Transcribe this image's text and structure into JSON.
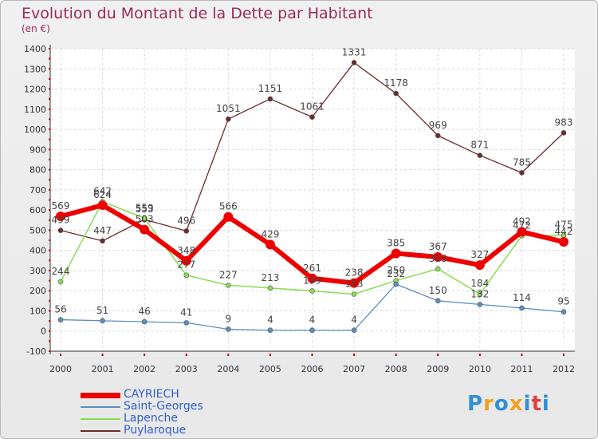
{
  "title": "Evolution du Montant de la Dette par Habitant",
  "subtitle": "(en €)",
  "logo": {
    "letters": [
      "P",
      "r",
      "o",
      "x",
      "i",
      "t",
      "i"
    ],
    "colors": [
      "#2f8fd8",
      "#f0a020",
      "#2f8fd8",
      "#f0a020",
      "#2f8fd8",
      "#e04040",
      "#2f8fd8"
    ]
  },
  "chart_data": {
    "type": "line",
    "x": [
      "2000",
      "2001",
      "2002",
      "2003",
      "2004",
      "2005",
      "2006",
      "2007",
      "2008",
      "2009",
      "2010",
      "2011",
      "2012"
    ],
    "ylim": [
      -100,
      1400
    ],
    "yticks": [
      -100,
      0,
      100,
      200,
      300,
      400,
      500,
      600,
      700,
      800,
      900,
      1000,
      1100,
      1200,
      1300,
      1400
    ],
    "grid": true,
    "legend_position": "bottom-left",
    "series": [
      {
        "name": "Puylaroque",
        "color": "#6e2a2a",
        "width": 1.3,
        "values": [
          499,
          447,
          553,
          496,
          1051,
          1151,
          1061,
          1331,
          1178,
          969,
          871,
          785,
          983
        ],
        "labels": [
          "499",
          "447",
          "553",
          "496",
          "1051",
          "1151",
          "1061",
          "1331",
          "1178",
          "969",
          "871",
          "785",
          "983"
        ]
      },
      {
        "name": "Lapenche",
        "color": "#88dd55",
        "width": 1.5,
        "values": [
          244,
          642,
          559,
          277,
          227,
          213,
          199,
          183,
          250,
          308,
          184,
          472,
          475
        ],
        "labels": [
          "244",
          "642",
          "559",
          "277",
          "227",
          "213",
          "199",
          "183",
          "250",
          "308",
          "184",
          "472",
          "475"
        ]
      },
      {
        "name": "Saint-Georges",
        "color": "#5b8fc0",
        "width": 1.3,
        "values": [
          56,
          51,
          46,
          41,
          9,
          4,
          4,
          4,
          232,
          150,
          132,
          114,
          95
        ],
        "labels": [
          "56",
          "51",
          "46",
          "41",
          "9",
          "4",
          "4",
          "4",
          "232",
          "150",
          "132",
          "114",
          "95"
        ]
      },
      {
        "name": "CAYRIECH",
        "color": "#ee0000",
        "width": 6,
        "values": [
          569,
          624,
          503,
          348,
          566,
          429,
          261,
          238,
          385,
          367,
          327,
          492,
          442
        ],
        "labels": [
          "569",
          "624",
          "503",
          "348",
          "566",
          "429",
          "261",
          "238",
          "385",
          "367",
          "327",
          "492",
          "442"
        ]
      }
    ],
    "legend_order": [
      "CAYRIECH",
      "Saint-Georges",
      "Lapenche",
      "Puylaroque"
    ]
  }
}
